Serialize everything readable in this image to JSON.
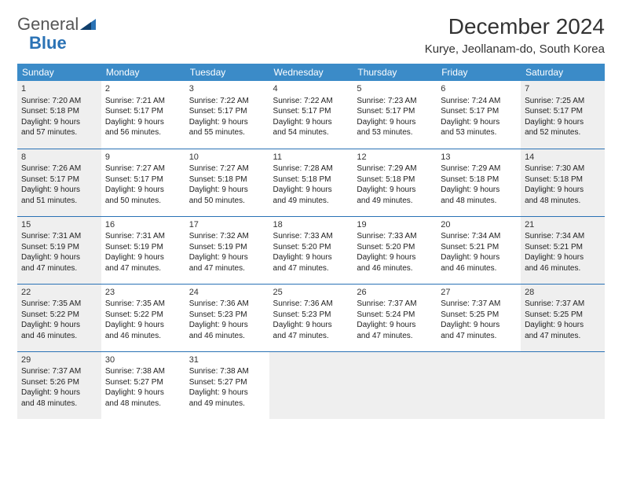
{
  "logo": {
    "text1": "General",
    "text2": "Blue"
  },
  "title": "December 2024",
  "location": "Kurye, Jeollanam-do, South Korea",
  "weekdays": [
    "Sunday",
    "Monday",
    "Tuesday",
    "Wednesday",
    "Thursday",
    "Friday",
    "Saturday"
  ],
  "colors": {
    "header_bg": "#3b8bc8",
    "header_fg": "#ffffff",
    "divider": "#2a72b5",
    "shade": "#efefef",
    "text": "#222222"
  },
  "weeks": [
    [
      {
        "day": "1",
        "sunrise": "Sunrise: 7:20 AM",
        "sunset": "Sunset: 5:18 PM",
        "daylight1": "Daylight: 9 hours",
        "daylight2": "and 57 minutes.",
        "shade": true
      },
      {
        "day": "2",
        "sunrise": "Sunrise: 7:21 AM",
        "sunset": "Sunset: 5:17 PM",
        "daylight1": "Daylight: 9 hours",
        "daylight2": "and 56 minutes.",
        "shade": false
      },
      {
        "day": "3",
        "sunrise": "Sunrise: 7:22 AM",
        "sunset": "Sunset: 5:17 PM",
        "daylight1": "Daylight: 9 hours",
        "daylight2": "and 55 minutes.",
        "shade": false
      },
      {
        "day": "4",
        "sunrise": "Sunrise: 7:22 AM",
        "sunset": "Sunset: 5:17 PM",
        "daylight1": "Daylight: 9 hours",
        "daylight2": "and 54 minutes.",
        "shade": false
      },
      {
        "day": "5",
        "sunrise": "Sunrise: 7:23 AM",
        "sunset": "Sunset: 5:17 PM",
        "daylight1": "Daylight: 9 hours",
        "daylight2": "and 53 minutes.",
        "shade": false
      },
      {
        "day": "6",
        "sunrise": "Sunrise: 7:24 AM",
        "sunset": "Sunset: 5:17 PM",
        "daylight1": "Daylight: 9 hours",
        "daylight2": "and 53 minutes.",
        "shade": false
      },
      {
        "day": "7",
        "sunrise": "Sunrise: 7:25 AM",
        "sunset": "Sunset: 5:17 PM",
        "daylight1": "Daylight: 9 hours",
        "daylight2": "and 52 minutes.",
        "shade": true
      }
    ],
    [
      {
        "day": "8",
        "sunrise": "Sunrise: 7:26 AM",
        "sunset": "Sunset: 5:17 PM",
        "daylight1": "Daylight: 9 hours",
        "daylight2": "and 51 minutes.",
        "shade": true
      },
      {
        "day": "9",
        "sunrise": "Sunrise: 7:27 AM",
        "sunset": "Sunset: 5:17 PM",
        "daylight1": "Daylight: 9 hours",
        "daylight2": "and 50 minutes.",
        "shade": false
      },
      {
        "day": "10",
        "sunrise": "Sunrise: 7:27 AM",
        "sunset": "Sunset: 5:18 PM",
        "daylight1": "Daylight: 9 hours",
        "daylight2": "and 50 minutes.",
        "shade": false
      },
      {
        "day": "11",
        "sunrise": "Sunrise: 7:28 AM",
        "sunset": "Sunset: 5:18 PM",
        "daylight1": "Daylight: 9 hours",
        "daylight2": "and 49 minutes.",
        "shade": false
      },
      {
        "day": "12",
        "sunrise": "Sunrise: 7:29 AM",
        "sunset": "Sunset: 5:18 PM",
        "daylight1": "Daylight: 9 hours",
        "daylight2": "and 49 minutes.",
        "shade": false
      },
      {
        "day": "13",
        "sunrise": "Sunrise: 7:29 AM",
        "sunset": "Sunset: 5:18 PM",
        "daylight1": "Daylight: 9 hours",
        "daylight2": "and 48 minutes.",
        "shade": false
      },
      {
        "day": "14",
        "sunrise": "Sunrise: 7:30 AM",
        "sunset": "Sunset: 5:18 PM",
        "daylight1": "Daylight: 9 hours",
        "daylight2": "and 48 minutes.",
        "shade": true
      }
    ],
    [
      {
        "day": "15",
        "sunrise": "Sunrise: 7:31 AM",
        "sunset": "Sunset: 5:19 PM",
        "daylight1": "Daylight: 9 hours",
        "daylight2": "and 47 minutes.",
        "shade": true
      },
      {
        "day": "16",
        "sunrise": "Sunrise: 7:31 AM",
        "sunset": "Sunset: 5:19 PM",
        "daylight1": "Daylight: 9 hours",
        "daylight2": "and 47 minutes.",
        "shade": false
      },
      {
        "day": "17",
        "sunrise": "Sunrise: 7:32 AM",
        "sunset": "Sunset: 5:19 PM",
        "daylight1": "Daylight: 9 hours",
        "daylight2": "and 47 minutes.",
        "shade": false
      },
      {
        "day": "18",
        "sunrise": "Sunrise: 7:33 AM",
        "sunset": "Sunset: 5:20 PM",
        "daylight1": "Daylight: 9 hours",
        "daylight2": "and 47 minutes.",
        "shade": false
      },
      {
        "day": "19",
        "sunrise": "Sunrise: 7:33 AM",
        "sunset": "Sunset: 5:20 PM",
        "daylight1": "Daylight: 9 hours",
        "daylight2": "and 46 minutes.",
        "shade": false
      },
      {
        "day": "20",
        "sunrise": "Sunrise: 7:34 AM",
        "sunset": "Sunset: 5:21 PM",
        "daylight1": "Daylight: 9 hours",
        "daylight2": "and 46 minutes.",
        "shade": false
      },
      {
        "day": "21",
        "sunrise": "Sunrise: 7:34 AM",
        "sunset": "Sunset: 5:21 PM",
        "daylight1": "Daylight: 9 hours",
        "daylight2": "and 46 minutes.",
        "shade": true
      }
    ],
    [
      {
        "day": "22",
        "sunrise": "Sunrise: 7:35 AM",
        "sunset": "Sunset: 5:22 PM",
        "daylight1": "Daylight: 9 hours",
        "daylight2": "and 46 minutes.",
        "shade": true
      },
      {
        "day": "23",
        "sunrise": "Sunrise: 7:35 AM",
        "sunset": "Sunset: 5:22 PM",
        "daylight1": "Daylight: 9 hours",
        "daylight2": "and 46 minutes.",
        "shade": false
      },
      {
        "day": "24",
        "sunrise": "Sunrise: 7:36 AM",
        "sunset": "Sunset: 5:23 PM",
        "daylight1": "Daylight: 9 hours",
        "daylight2": "and 46 minutes.",
        "shade": false
      },
      {
        "day": "25",
        "sunrise": "Sunrise: 7:36 AM",
        "sunset": "Sunset: 5:23 PM",
        "daylight1": "Daylight: 9 hours",
        "daylight2": "and 47 minutes.",
        "shade": false
      },
      {
        "day": "26",
        "sunrise": "Sunrise: 7:37 AM",
        "sunset": "Sunset: 5:24 PM",
        "daylight1": "Daylight: 9 hours",
        "daylight2": "and 47 minutes.",
        "shade": false
      },
      {
        "day": "27",
        "sunrise": "Sunrise: 7:37 AM",
        "sunset": "Sunset: 5:25 PM",
        "daylight1": "Daylight: 9 hours",
        "daylight2": "and 47 minutes.",
        "shade": false
      },
      {
        "day": "28",
        "sunrise": "Sunrise: 7:37 AM",
        "sunset": "Sunset: 5:25 PM",
        "daylight1": "Daylight: 9 hours",
        "daylight2": "and 47 minutes.",
        "shade": true
      }
    ],
    [
      {
        "day": "29",
        "sunrise": "Sunrise: 7:37 AM",
        "sunset": "Sunset: 5:26 PM",
        "daylight1": "Daylight: 9 hours",
        "daylight2": "and 48 minutes.",
        "shade": true
      },
      {
        "day": "30",
        "sunrise": "Sunrise: 7:38 AM",
        "sunset": "Sunset: 5:27 PM",
        "daylight1": "Daylight: 9 hours",
        "daylight2": "and 48 minutes.",
        "shade": false
      },
      {
        "day": "31",
        "sunrise": "Sunrise: 7:38 AM",
        "sunset": "Sunset: 5:27 PM",
        "daylight1": "Daylight: 9 hours",
        "daylight2": "and 49 minutes.",
        "shade": false
      },
      {
        "empty": true,
        "shade": true
      },
      {
        "empty": true,
        "shade": true
      },
      {
        "empty": true,
        "shade": true
      },
      {
        "empty": true,
        "shade": true
      }
    ]
  ]
}
